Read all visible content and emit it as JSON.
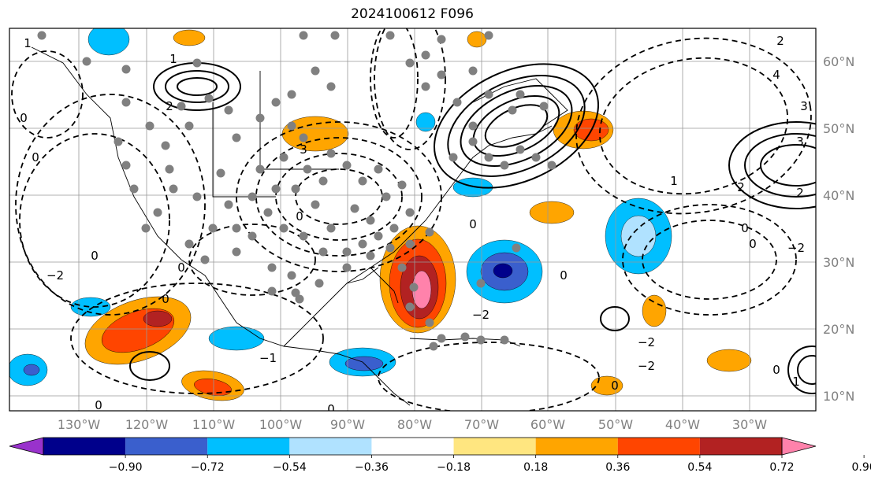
{
  "title": "2024100612 F096",
  "colors": {
    "background": "#ffffff",
    "frame": "#000000",
    "grid": "#999999",
    "contour": "#000000",
    "marker": "#808080",
    "coastline": "#000000"
  },
  "axes": {
    "lon_labels": [
      "130°W",
      "120°W",
      "110°W",
      "100°W",
      "90°W",
      "80°W",
      "70°W",
      "60°W",
      "50°W",
      "40°W",
      "30°W"
    ],
    "lat_labels": [
      "60°N",
      "50°N",
      "40°N",
      "30°N",
      "20°N",
      "10°N"
    ]
  },
  "colorbar": {
    "orientation": "horizontal",
    "extend": "both",
    "colors": [
      "#9932cc",
      "#00008b",
      "#3a5fcd",
      "#00bfff",
      "#b0e2ff",
      "#ffffff",
      "#ffe680",
      "#ffa500",
      "#ff4500",
      "#b22222",
      "#ff82ab"
    ],
    "tick_labels": [
      "−0.90",
      "−0.72",
      "−0.54",
      "−0.36",
      "−0.18",
      "0.18",
      "0.36",
      "0.54",
      "0.72",
      "0.90"
    ]
  },
  "contour_labels": [
    "0",
    "1",
    "2",
    "3",
    "4",
    "−1",
    "−2",
    "−3"
  ],
  "legend": {
    "shading": "anomaly",
    "markers": "station",
    "contours": "height"
  }
}
